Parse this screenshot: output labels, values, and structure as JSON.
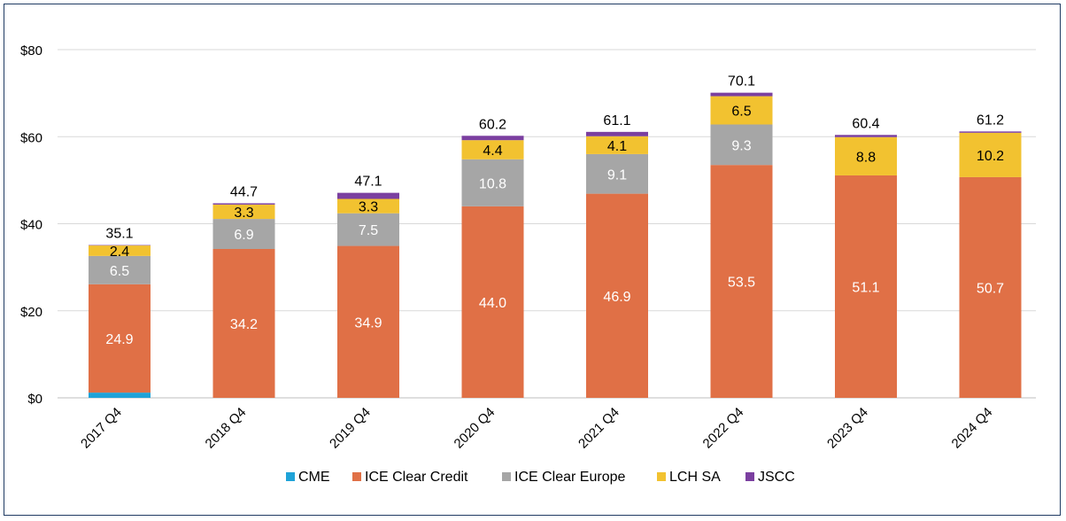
{
  "chart_data": {
    "type": "bar",
    "stacked": true,
    "categories": [
      "2017 Q4",
      "2018 Q4",
      "2019 Q4",
      "2020 Q4",
      "2021 Q4",
      "2022 Q4",
      "2023 Q4",
      "2024 Q4"
    ],
    "series": [
      {
        "name": "CME",
        "color": "#1fa3d8",
        "values": [
          1.2,
          0,
          0,
          0,
          0,
          0,
          0,
          0
        ],
        "labels": [
          "",
          "",
          "",
          "",
          "",
          "",
          "",
          ""
        ]
      },
      {
        "name": "ICE Clear Credit",
        "color": "#e07046",
        "values": [
          24.9,
          34.2,
          34.9,
          44.0,
          46.9,
          53.5,
          51.1,
          50.7
        ],
        "labels": [
          "24.9",
          "34.2",
          "34.9",
          "44.0",
          "46.9",
          "53.5",
          "51.1",
          "50.7"
        ]
      },
      {
        "name": "ICE Clear Europe",
        "color": "#a6a6a6",
        "values": [
          6.5,
          6.9,
          7.5,
          10.8,
          9.1,
          9.3,
          0,
          0
        ],
        "labels": [
          "6.5",
          "6.9",
          "7.5",
          "10.8",
          "9.1",
          "9.3",
          "",
          ""
        ]
      },
      {
        "name": "LCH SA",
        "color": "#f2c230",
        "values": [
          2.4,
          3.3,
          3.3,
          4.4,
          4.1,
          6.5,
          8.8,
          10.2
        ],
        "labels": [
          "2.4",
          "3.3",
          "3.3",
          "4.4",
          "4.1",
          "6.5",
          "8.8",
          "10.2"
        ]
      },
      {
        "name": "JSCC",
        "color": "#7b3fa0",
        "values": [
          0.1,
          0.3,
          1.4,
          1.0,
          1.0,
          0.8,
          0.5,
          0.3
        ],
        "labels": [
          "",
          "",
          "",
          "",
          "",
          "",
          "",
          ""
        ]
      }
    ],
    "totals": [
      "35.1",
      "44.7",
      "47.1",
      "60.2",
      "61.1",
      "70.1",
      "60.4",
      "61.2"
    ],
    "yticks": [
      0,
      20,
      40,
      60,
      80
    ],
    "ytick_labels": [
      "$0",
      "$20",
      "$40",
      "$60",
      "$80"
    ],
    "ylim": [
      0,
      80
    ],
    "grid": true,
    "legend_position": "bottom"
  }
}
